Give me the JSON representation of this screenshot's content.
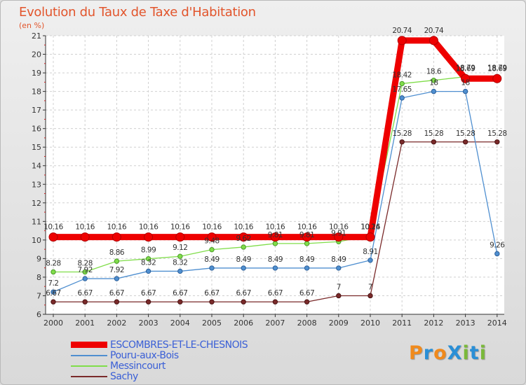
{
  "title": "Evolution du Taux de Taxe d'Habitation",
  "subtitle": "(en %)",
  "logo": {
    "text": "ProXiti",
    "colors": [
      "#f08a1c",
      "#2a8fd6",
      "#f08a1c",
      "#2a8fd6",
      "#7ab93a",
      "#2a8fd6",
      "#7ab93a"
    ]
  },
  "chart_data": {
    "type": "line",
    "title": "Evolution du Taux de Taxe d'Habitation",
    "ylabel": "(en %)",
    "ylim": [
      6,
      21
    ],
    "yticks": [
      6,
      7,
      8,
      9,
      10,
      11,
      12,
      13,
      14,
      15,
      16,
      17,
      18,
      19,
      20,
      21
    ],
    "x": [
      "2000",
      "2001",
      "2002",
      "2003",
      "2004",
      "2005",
      "2006",
      "2007",
      "2008",
      "2009",
      "2010",
      "2011",
      "2012",
      "2013",
      "2014"
    ],
    "grid": true,
    "legend": "bottom-left",
    "series": [
      {
        "name": "ESCOMBRES-ET-LE-CHESNOIS",
        "color": "#ee0000",
        "values": [
          10.16,
          10.16,
          10.16,
          10.16,
          10.16,
          10.16,
          10.16,
          10.16,
          10.16,
          10.16,
          10.16,
          20.74,
          20.74,
          18.69,
          18.69
        ],
        "labels": [
          "10.16",
          "10.16",
          "10.16",
          "10.16",
          "10.16",
          "10.16",
          "10.16",
          "10.16",
          "10.16",
          "10.16",
          "10.16",
          "20.74",
          "20.74",
          "18.69",
          "18.69"
        ]
      },
      {
        "name": "Pouru-aux-Bois",
        "color": "#4f8fd0",
        "values": [
          7.2,
          7.92,
          7.92,
          8.32,
          8.32,
          8.49,
          8.49,
          8.49,
          8.49,
          8.49,
          8.91,
          17.65,
          18,
          18,
          9.26
        ],
        "labels": [
          "7.2",
          "7.92",
          "7.92",
          "8.32",
          "8.32",
          "8.49",
          "8.49",
          "8.49",
          "8.49",
          "8.49",
          "8.91",
          "17.65",
          "18",
          "18",
          "9.26"
        ]
      },
      {
        "name": "Messincourt",
        "color": "#80dd4a",
        "values": [
          8.28,
          8.28,
          8.86,
          8.99,
          9.12,
          9.48,
          9.62,
          9.81,
          9.81,
          9.91,
          10.24,
          18.42,
          18.6,
          18.79,
          18.79
        ],
        "labels": [
          "8.28",
          "8.28",
          "8.86",
          "8.99",
          "9.12",
          "9.48",
          "9.62",
          "9.81",
          "9.81",
          "9.91",
          "10.24",
          "18.42",
          "18.6",
          "18.79",
          "18.79"
        ]
      },
      {
        "name": "Sachy",
        "color": "#7a2a2a",
        "values": [
          6.67,
          6.67,
          6.67,
          6.67,
          6.67,
          6.67,
          6.67,
          6.67,
          6.67,
          7,
          7,
          15.28,
          15.28,
          15.28,
          15.28
        ],
        "labels": [
          "6.67",
          "6.67",
          "6.67",
          "6.67",
          "6.67",
          "6.67",
          "6.67",
          "6.67",
          "6.67",
          "7",
          "7",
          "15.28",
          "15.28",
          "15.28",
          "15.28"
        ]
      }
    ]
  }
}
